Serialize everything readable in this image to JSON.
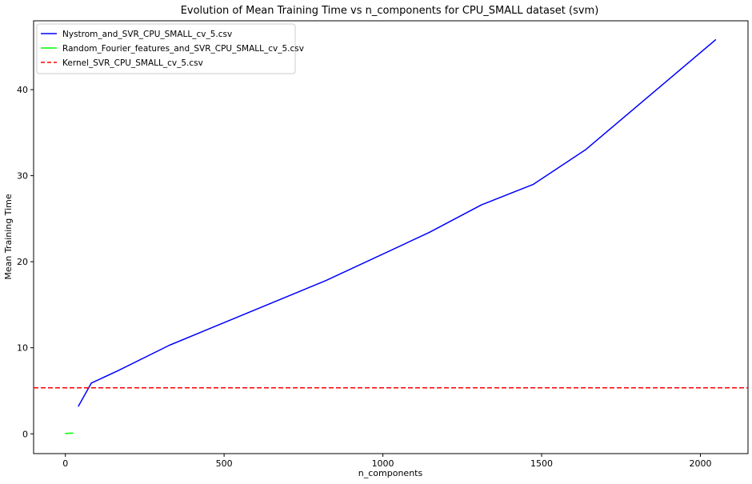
{
  "chart_data": {
    "type": "line",
    "title": "Evolution of Mean Training Time vs n_components for CPU_SMALL dataset (svm)",
    "xlabel": "n_components",
    "ylabel": "Mean Training Time",
    "xlim": [
      -100,
      2150
    ],
    "ylim": [
      -2.3,
      48.0
    ],
    "xticks": [
      0,
      500,
      1000,
      1500,
      2000
    ],
    "yticks": [
      0,
      10,
      20,
      30,
      40
    ],
    "grid": false,
    "legend_position": "top-left",
    "series": [
      {
        "name": "Nystrom_and_SVR_CPU_SMALL_cv_5.csv",
        "color": "#0000ff",
        "style": "solid",
        "x": [
          41,
          82,
          164,
          328,
          820,
          1146,
          1310,
          1474,
          1638,
          2048
        ],
        "y": [
          3.2,
          5.9,
          7.3,
          10.3,
          17.8,
          23.4,
          26.6,
          29.0,
          33.0,
          45.8
        ]
      },
      {
        "name": "Random_Fourier_features_and_SVR_CPU_SMALL_cv_5.csv",
        "color": "#00ff00",
        "style": "solid",
        "x": [
          0,
          2,
          4,
          8,
          16,
          24
        ],
        "y": [
          0.05,
          0.05,
          0.05,
          0.06,
          0.07,
          0.08
        ]
      },
      {
        "name": "Kernel_SVR_CPU_SMALL_cv_5.csv",
        "color": "#ff0000",
        "style": "dashed",
        "hline": 5.35
      }
    ]
  }
}
